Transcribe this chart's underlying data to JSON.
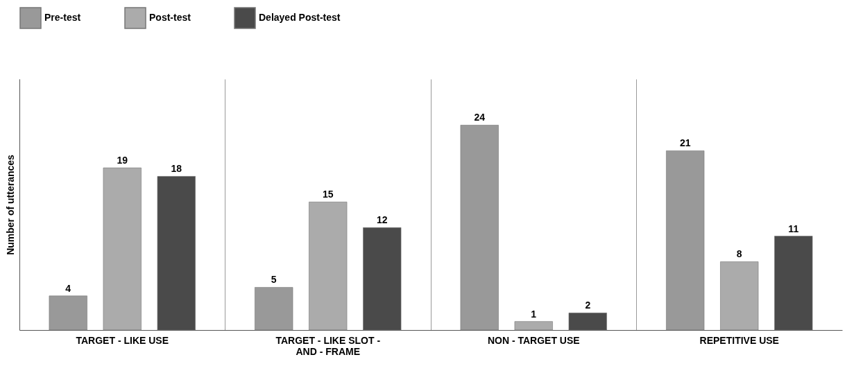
{
  "chart_data": {
    "type": "bar",
    "ylabel": "Number of utterances",
    "categories": [
      "TARGET - LIKE USE",
      "TARGET - LIKE SLOT - AND - FRAME",
      "NON - TARGET USE",
      "REPETITIVE USE"
    ],
    "series": [
      {
        "name": "Pre-test",
        "color": "#999999",
        "values": [
          4,
          5,
          24,
          21
        ]
      },
      {
        "name": "Post-test",
        "color": "#ababab",
        "values": [
          19,
          15,
          1,
          8
        ]
      },
      {
        "name": "Delayed Post-test",
        "color": "#4a4a4a",
        "values": [
          18,
          12,
          2,
          11
        ]
      }
    ],
    "ylim": [
      0,
      29.4
    ],
    "tick_labels": "x",
    "grid": "x",
    "legend": "top",
    "data_labels": true
  }
}
